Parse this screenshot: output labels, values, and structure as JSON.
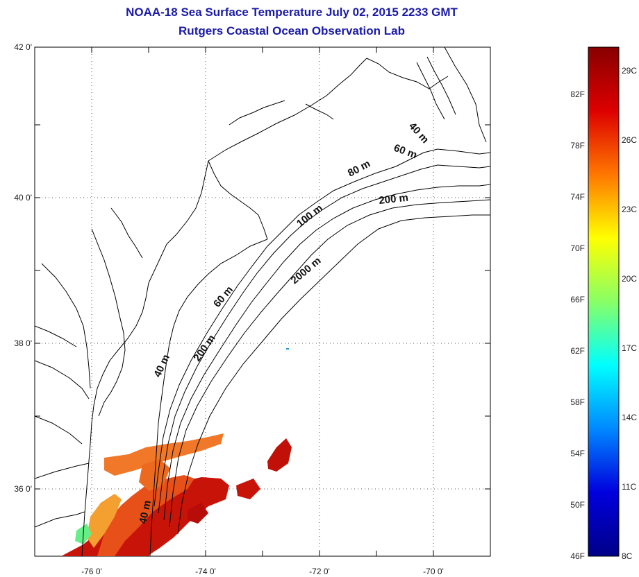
{
  "header": {
    "title_line1": "NOAA-18 Sea Surface Temperature July 02, 2015 2233 GMT",
    "title_line2": "Rutgers Coastal Ocean Observation Lab"
  },
  "map": {
    "lat_labels": [
      "42 0'",
      "40 0'",
      "38 0'",
      "36 0'"
    ],
    "lon_labels": [
      "-76 0'",
      "-74 0'",
      "-72 0'",
      "-70 0'"
    ],
    "isobath_labels": [
      "40 m",
      "60 m",
      "80 m",
      "200 m",
      "100 m",
      "2000 m",
      "60 m",
      "40 m",
      "200 m",
      "40 m"
    ],
    "colors": {
      "land_line": "#000000",
      "grid": "#555555",
      "sst_warm": "#d42a10",
      "sst_hot": "#b80c08"
    }
  },
  "colorbar": {
    "fahrenheit_labels": [
      "82F",
      "78F",
      "74F",
      "70F",
      "66F",
      "62F",
      "58F",
      "54F",
      "50F",
      "46F"
    ],
    "celsius_labels": [
      "29C",
      "26C",
      "23C",
      "20C",
      "17C",
      "14C",
      "11C",
      "8C"
    ],
    "scale_colors": [
      "#880000",
      "#dd0000",
      "#ff7700",
      "#ffff00",
      "#88ff66",
      "#00ffff",
      "#0088ff",
      "#0000dd",
      "#000088"
    ]
  }
}
